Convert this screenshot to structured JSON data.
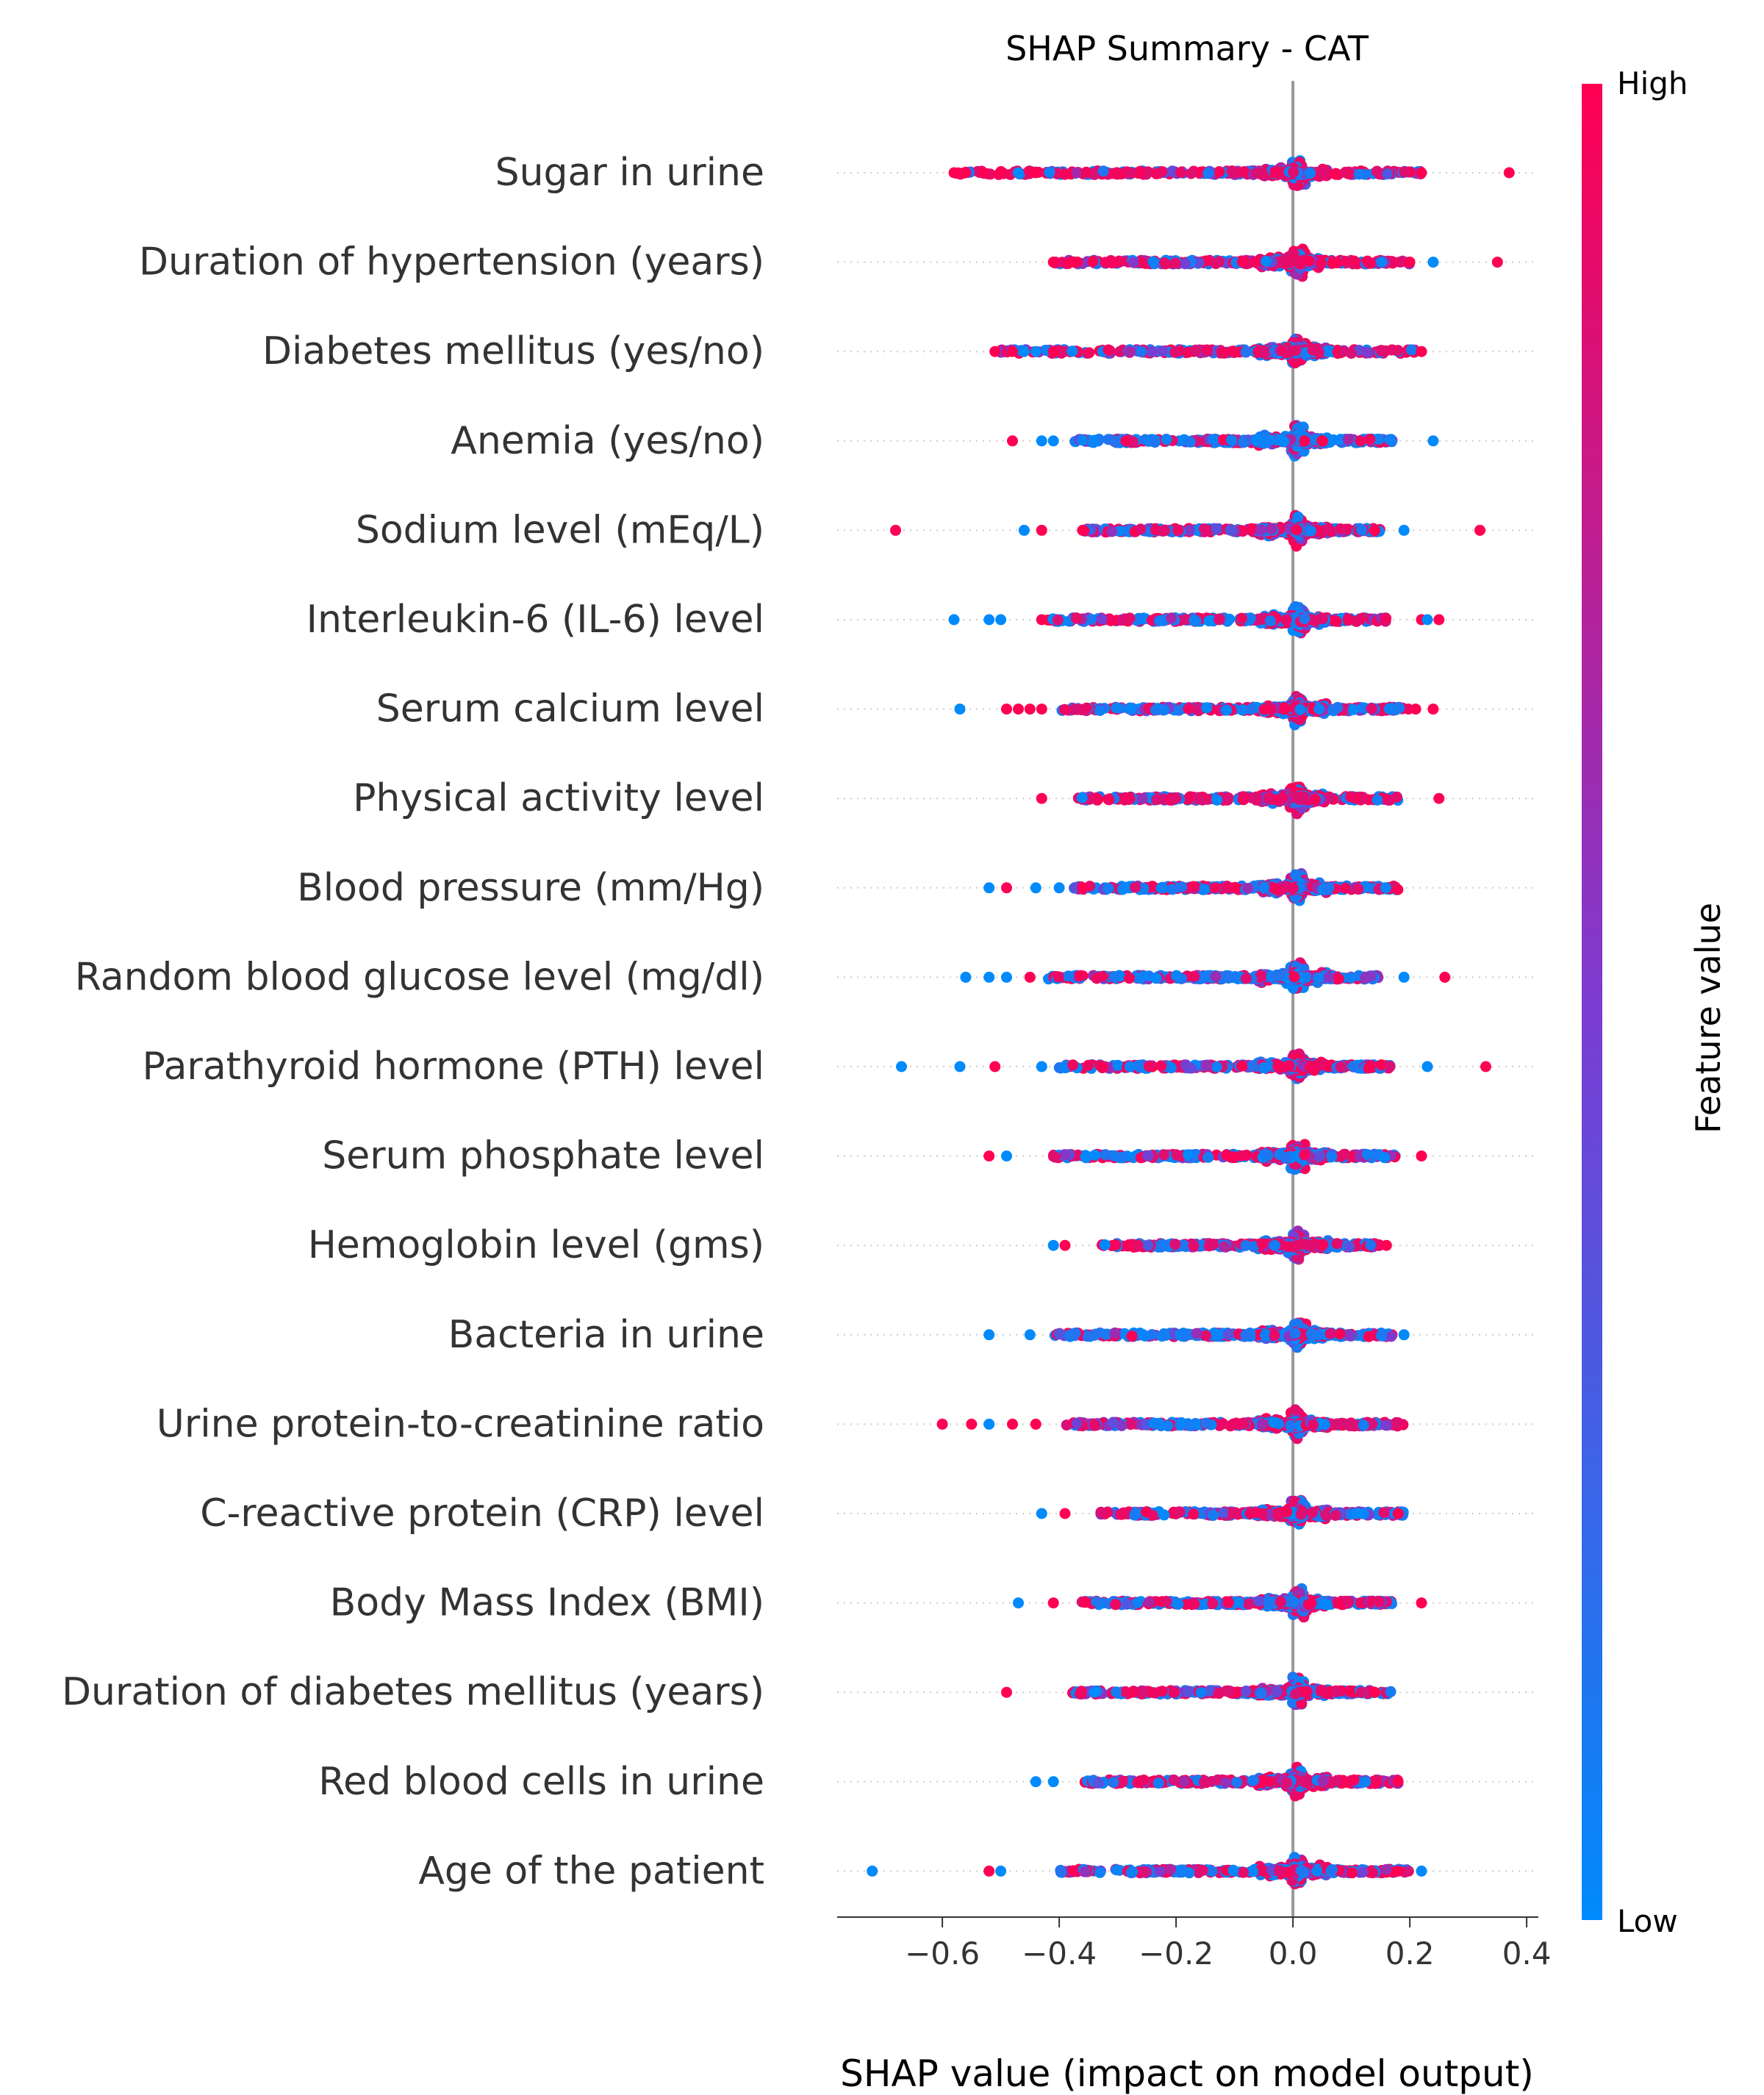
{
  "chart_data": {
    "type": "scatter",
    "subtype": "shap-beeswarm",
    "title": "SHAP Summary - CAT",
    "xlabel": "SHAP value (impact on model output)",
    "xlim": [
      -0.78,
      0.42
    ],
    "xticks": [
      -0.6,
      -0.4,
      -0.2,
      0.0,
      0.2,
      0.4
    ],
    "xtick_labels": [
      "−0.6",
      "−0.4",
      "−0.2",
      "0.0",
      "0.2",
      "0.4"
    ],
    "zero_line": 0.0,
    "colorbar": {
      "label": "Feature value",
      "high_label": "High",
      "low_label": "Low",
      "low_color": "#008afb",
      "mid_color": "#7c3bd1",
      "high_color": "#ff0052"
    },
    "features": [
      {
        "name": "Sugar in urine",
        "min": -0.59,
        "max": 0.37,
        "core": [
          -0.58,
          0.22
        ],
        "outliers_high": [
          -0.58,
          -0.56,
          -0.53,
          -0.5,
          -0.44,
          0.22,
          0.37
        ],
        "outliers_low": [
          -0.47
        ],
        "bias": 0.75
      },
      {
        "name": "Duration of hypertension (years)",
        "min": -0.41,
        "max": 0.35,
        "core": [
          -0.41,
          0.2
        ],
        "outliers_high": [
          -0.41,
          -0.38,
          0.2,
          0.35
        ],
        "outliers_low": [
          0.24
        ],
        "bias": 0.7
      },
      {
        "name": "Diabetes mellitus (yes/no)",
        "min": -0.51,
        "max": 0.22,
        "core": [
          -0.5,
          0.21
        ],
        "outliers_high": [
          -0.51,
          -0.48,
          -0.41,
          0.22
        ],
        "outliers_low": [
          -0.46,
          -0.44
        ],
        "bias": 0.7
      },
      {
        "name": "Anemia (yes/no)",
        "min": -0.48,
        "max": 0.24,
        "core": [
          -0.38,
          0.17
        ],
        "outliers_high": [
          -0.48,
          0.02,
          0.05
        ],
        "outliers_low": [
          -0.43,
          -0.41,
          0.24
        ],
        "bias": 0.3
      },
      {
        "name": "Sodium level (mEq/L)",
        "min": -0.68,
        "max": 0.32,
        "core": [
          -0.36,
          0.15
        ],
        "outliers_high": [
          -0.68,
          -0.43,
          -0.36,
          0.14,
          0.32
        ],
        "outliers_low": [
          -0.46,
          0.19
        ],
        "bias": 0.55
      },
      {
        "name": "Interleukin-6 (IL-6) level",
        "min": -0.58,
        "max": 0.25,
        "core": [
          -0.42,
          0.16
        ],
        "outliers_high": [
          -0.43,
          0.22,
          0.25
        ],
        "outliers_low": [
          -0.58,
          -0.52,
          -0.5,
          0.23
        ],
        "bias": 0.5
      },
      {
        "name": "Serum calcium level",
        "min": -0.57,
        "max": 0.24,
        "core": [
          -0.4,
          0.2
        ],
        "outliers_high": [
          -0.49,
          -0.47,
          -0.45,
          -0.43,
          0.21,
          0.24
        ],
        "outliers_low": [
          -0.57
        ],
        "bias": 0.55
      },
      {
        "name": "Physical activity level",
        "min": -0.43,
        "max": 0.25,
        "core": [
          -0.37,
          0.18
        ],
        "outliers_high": [
          -0.43,
          0.25
        ],
        "outliers_low": [],
        "bias": 0.7
      },
      {
        "name": "Blood pressure (mm/Hg)",
        "min": -0.52,
        "max": 0.18,
        "core": [
          -0.38,
          0.18
        ],
        "outliers_high": [
          -0.49,
          -0.36
        ],
        "outliers_low": [
          -0.52,
          -0.44,
          -0.4
        ],
        "bias": 0.5
      },
      {
        "name": "Random blood glucose level (mg/dl)",
        "min": -0.56,
        "max": 0.26,
        "core": [
          -0.42,
          0.15
        ],
        "outliers_high": [
          -0.45,
          0.26
        ],
        "outliers_low": [
          -0.56,
          -0.52,
          -0.49,
          0.19
        ],
        "bias": 0.35
      },
      {
        "name": "Parathyroid hormone (PTH) level",
        "min": -0.67,
        "max": 0.33,
        "core": [
          -0.4,
          0.17
        ],
        "outliers_high": [
          -0.51,
          0.33
        ],
        "outliers_low": [
          -0.67,
          -0.57,
          -0.43,
          0.23
        ],
        "bias": 0.6
      },
      {
        "name": "Serum phosphate level",
        "min": -0.52,
        "max": 0.22,
        "core": [
          -0.41,
          0.18
        ],
        "outliers_high": [
          -0.52,
          0.22
        ],
        "outliers_low": [
          -0.49
        ],
        "bias": 0.5
      },
      {
        "name": "Hemoglobin level (gms)",
        "min": -0.41,
        "max": 0.16,
        "core": [
          -0.33,
          0.15
        ],
        "outliers_high": [
          -0.39,
          0.16
        ],
        "outliers_low": [
          -0.41
        ],
        "bias": 0.5
      },
      {
        "name": "Bacteria in urine",
        "min": -0.52,
        "max": 0.19,
        "core": [
          -0.41,
          0.17
        ],
        "outliers_high": [],
        "outliers_low": [
          -0.52,
          -0.45,
          0.19
        ],
        "bias": 0.3
      },
      {
        "name": "Urine protein-to-creatinine ratio",
        "min": -0.6,
        "max": 0.19,
        "core": [
          -0.39,
          0.19
        ],
        "outliers_high": [
          -0.6,
          -0.55,
          -0.48,
          -0.44
        ],
        "outliers_low": [
          -0.52
        ],
        "bias": 0.6
      },
      {
        "name": "C-reactive protein (CRP) level",
        "min": -0.43,
        "max": 0.19,
        "core": [
          -0.33,
          0.19
        ],
        "outliers_high": [
          -0.39,
          0.18
        ],
        "outliers_low": [
          -0.43,
          0.11
        ],
        "bias": 0.55
      },
      {
        "name": "Body Mass Index (BMI)",
        "min": -0.47,
        "max": 0.22,
        "core": [
          -0.37,
          0.17
        ],
        "outliers_high": [
          -0.41,
          0.22
        ],
        "outliers_low": [
          -0.47
        ],
        "bias": 0.5
      },
      {
        "name": "Duration of diabetes mellitus (years)",
        "min": -0.49,
        "max": 0.17,
        "core": [
          -0.38,
          0.17
        ],
        "outliers_high": [
          -0.49,
          0.14
        ],
        "outliers_low": [
          -0.34
        ],
        "bias": 0.5
      },
      {
        "name": "Red blood cells in urine",
        "min": -0.44,
        "max": 0.18,
        "core": [
          -0.36,
          0.18
        ],
        "outliers_high": [
          0.18
        ],
        "outliers_low": [
          -0.44,
          -0.41
        ],
        "bias": 0.6
      },
      {
        "name": "Age of the patient",
        "min": -0.72,
        "max": 0.22,
        "core": [
          -0.4,
          0.2
        ],
        "outliers_high": [
          -0.52,
          0.18
        ],
        "outliers_low": [
          -0.72,
          -0.5,
          0.22
        ],
        "bias": 0.55
      }
    ]
  }
}
